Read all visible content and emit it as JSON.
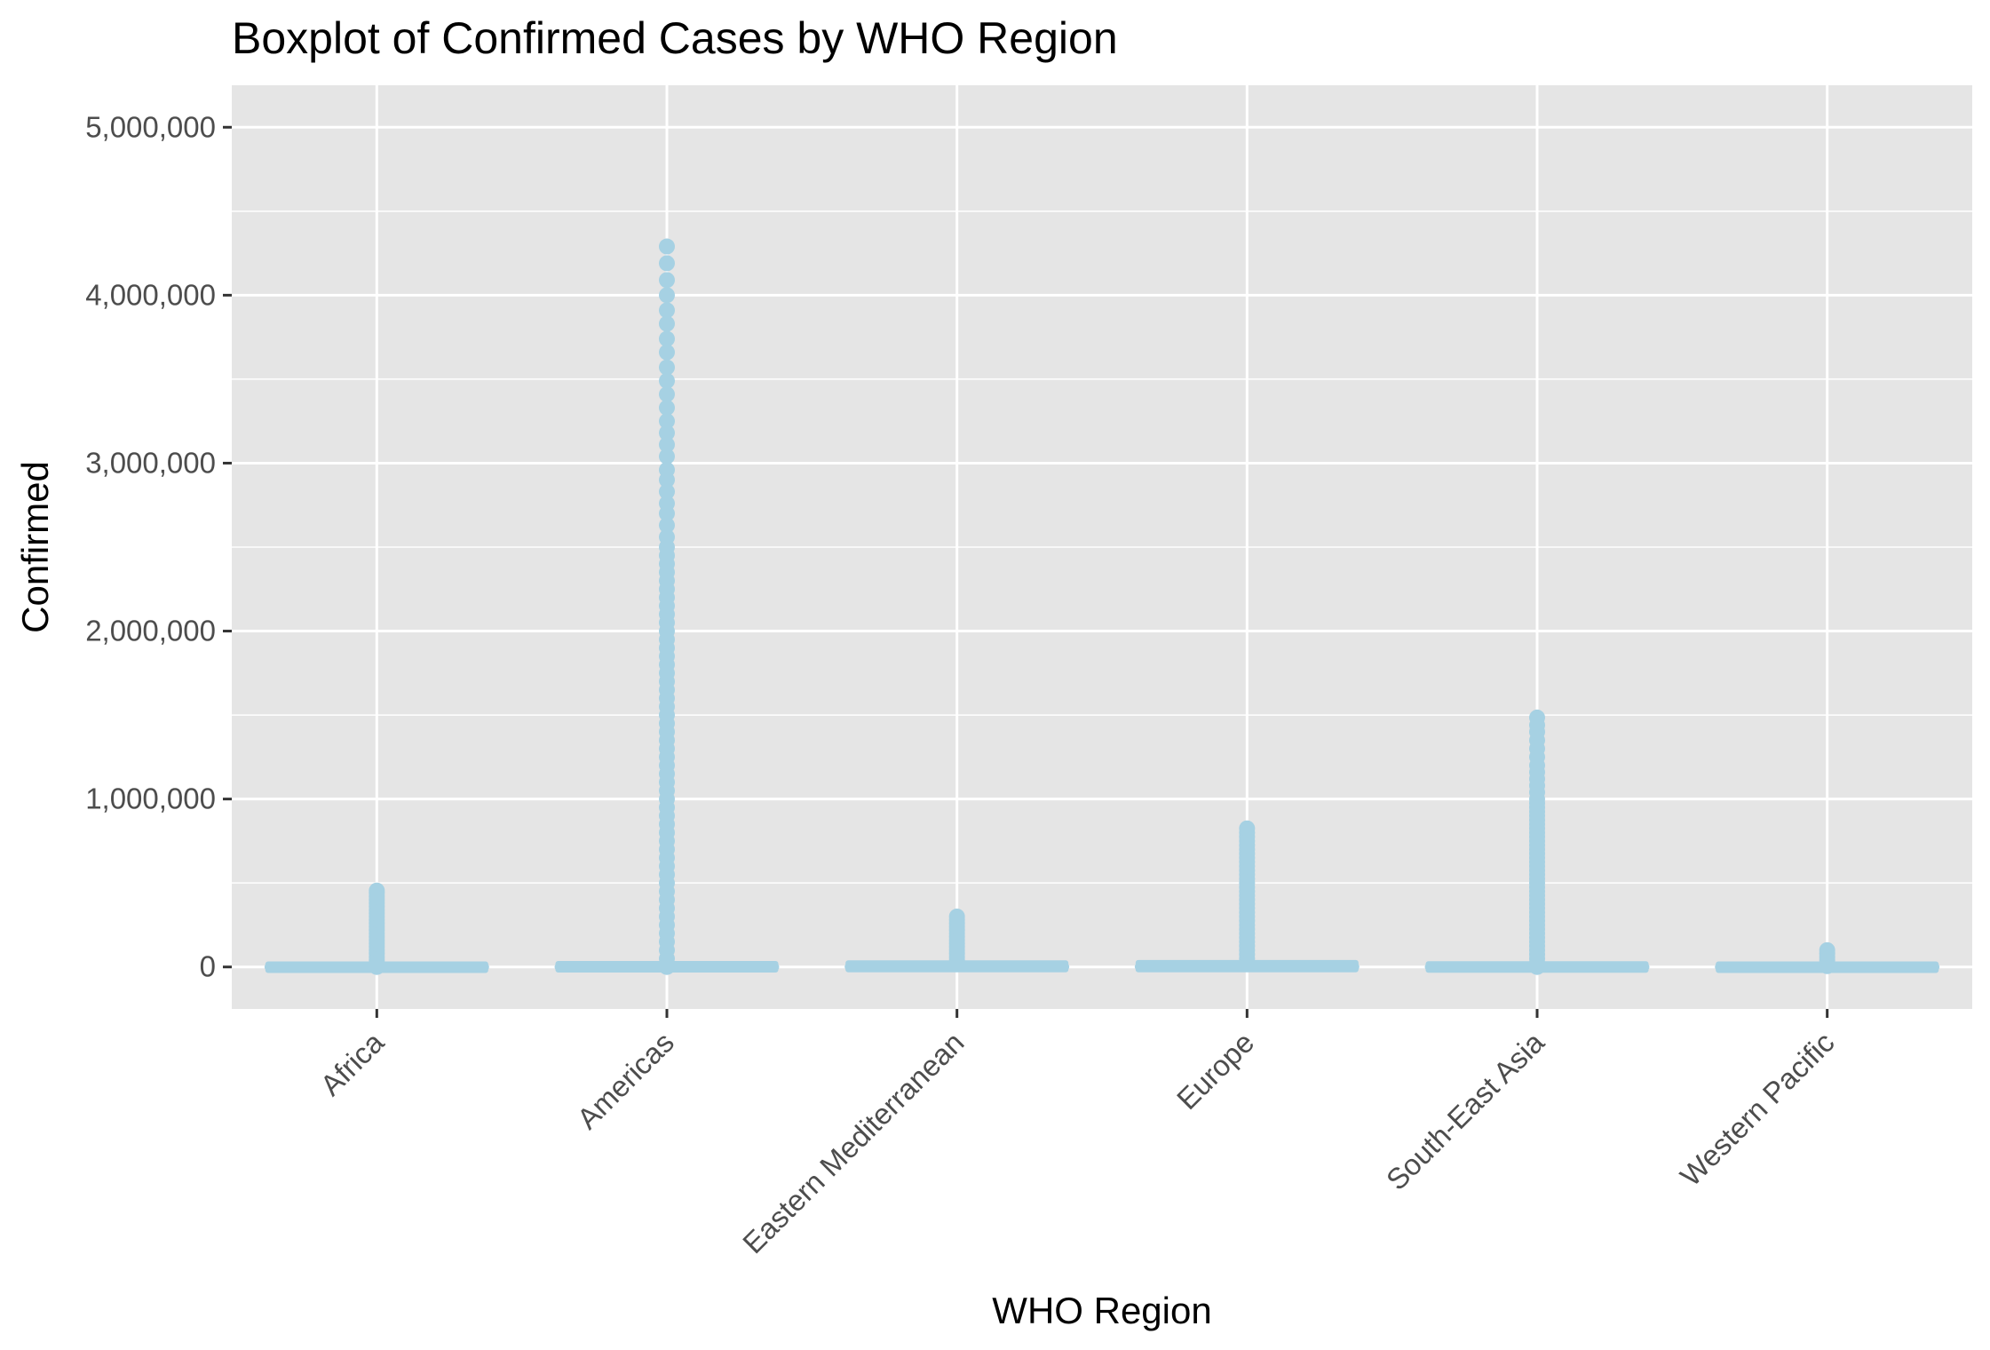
{
  "chart_data": {
    "type": "boxplot",
    "title": "Boxplot of Confirmed Cases by WHO Region",
    "xlabel": "WHO Region",
    "ylabel": "Confirmed",
    "ylim": [
      -250000,
      5250000
    ],
    "y_ticks": [
      0,
      1000000,
      2000000,
      3000000,
      4000000,
      5000000
    ],
    "y_tick_labels": [
      "0",
      "1,000,000",
      "2,000,000",
      "3,000,000",
      "4,000,000",
      "5,000,000"
    ],
    "categories": [
      "Africa",
      "Americas",
      "Eastern Mediterranean",
      "Europe",
      "South-East Asia",
      "Western Pacific"
    ],
    "grid": true,
    "legend": "none",
    "colors": {
      "box": "#a6d1e3",
      "panel": "#e5e5e5",
      "grid": "#ffffff",
      "tick": "#333333"
    },
    "boxes": [
      {
        "category": "Africa",
        "min": 0,
        "q1": 0,
        "median": 0,
        "q3": 1500,
        "max": 3500,
        "outlier_max": 455000,
        "outlier_min": 0
      },
      {
        "category": "Americas",
        "min": 0,
        "q1": 0,
        "median": 100,
        "q3": 4000,
        "max": 9000,
        "outlier_max": 4290000,
        "outlier_min": 0
      },
      {
        "category": "Eastern Mediterranean",
        "min": 0,
        "q1": 0,
        "median": 500,
        "q3": 8000,
        "max": 18000,
        "outlier_max": 300000,
        "outlier_min": 0
      },
      {
        "category": "Europe",
        "min": 0,
        "q1": 0,
        "median": 1000,
        "q3": 10000,
        "max": 24000,
        "outlier_max": 825000,
        "outlier_min": 0
      },
      {
        "category": "South-East Asia",
        "min": 0,
        "q1": 0,
        "median": 100,
        "q3": 2500,
        "max": 6000,
        "outlier_max": 1485000,
        "outlier_min": 0
      },
      {
        "category": "Western Pacific",
        "min": 0,
        "q1": 0,
        "median": 100,
        "q3": 1500,
        "max": 3500,
        "outlier_max": 100000,
        "outlier_min": 0
      }
    ],
    "outliers": [
      {
        "category": "Africa",
        "values": [
          0,
          20000,
          40000,
          60000,
          80000,
          100000,
          120000,
          140000,
          160000,
          180000,
          200000,
          220000,
          240000,
          260000,
          280000,
          300000,
          320000,
          340000,
          360000,
          380000,
          400000,
          420000,
          440000,
          455000
        ]
      },
      {
        "category": "Americas",
        "values": [
          0,
          50000,
          100000,
          150000,
          200000,
          250000,
          300000,
          350000,
          400000,
          450000,
          500000,
          550000,
          600000,
          650000,
          700000,
          750000,
          800000,
          850000,
          900000,
          950000,
          1000000,
          1050000,
          1100000,
          1150000,
          1200000,
          1250000,
          1300000,
          1350000,
          1400000,
          1450000,
          1500000,
          1550000,
          1600000,
          1650000,
          1700000,
          1750000,
          1800000,
          1850000,
          1900000,
          1950000,
          2000000,
          2050000,
          2100000,
          2150000,
          2200000,
          2250000,
          2300000,
          2350000,
          2400000,
          2450000,
          2500000,
          2560000,
          2630000,
          2700000,
          2760000,
          2830000,
          2900000,
          2960000,
          3040000,
          3110000,
          3180000,
          3250000,
          3330000,
          3410000,
          3490000,
          3570000,
          3660000,
          3740000,
          3830000,
          3910000,
          4000000,
          4090000,
          4190000,
          4290000
        ]
      },
      {
        "category": "Eastern Mediterranean",
        "values": [
          20000,
          40000,
          60000,
          80000,
          100000,
          120000,
          140000,
          160000,
          180000,
          200000,
          220000,
          240000,
          260000,
          280000,
          300000
        ]
      },
      {
        "category": "Europe",
        "values": [
          25000,
          50000,
          75000,
          100000,
          125000,
          150000,
          175000,
          200000,
          225000,
          250000,
          275000,
          300000,
          325000,
          350000,
          375000,
          400000,
          425000,
          450000,
          475000,
          500000,
          525000,
          550000,
          575000,
          600000,
          625000,
          650000,
          675000,
          700000,
          725000,
          750000,
          775000,
          800000,
          825000
        ]
      },
      {
        "category": "South-East Asia",
        "values": [
          0,
          25000,
          50000,
          75000,
          100000,
          125000,
          150000,
          175000,
          200000,
          225000,
          250000,
          275000,
          300000,
          325000,
          350000,
          375000,
          400000,
          425000,
          450000,
          475000,
          500000,
          525000,
          550000,
          575000,
          600000,
          625000,
          650000,
          675000,
          700000,
          725000,
          750000,
          775000,
          800000,
          825000,
          850000,
          875000,
          900000,
          925000,
          950000,
          975000,
          1000000,
          1040000,
          1080000,
          1120000,
          1160000,
          1200000,
          1250000,
          1300000,
          1350000,
          1400000,
          1440000,
          1485000
        ]
      },
      {
        "category": "Western Pacific",
        "values": [
          5000,
          20000,
          40000,
          60000,
          80000,
          100000
        ]
      }
    ]
  }
}
